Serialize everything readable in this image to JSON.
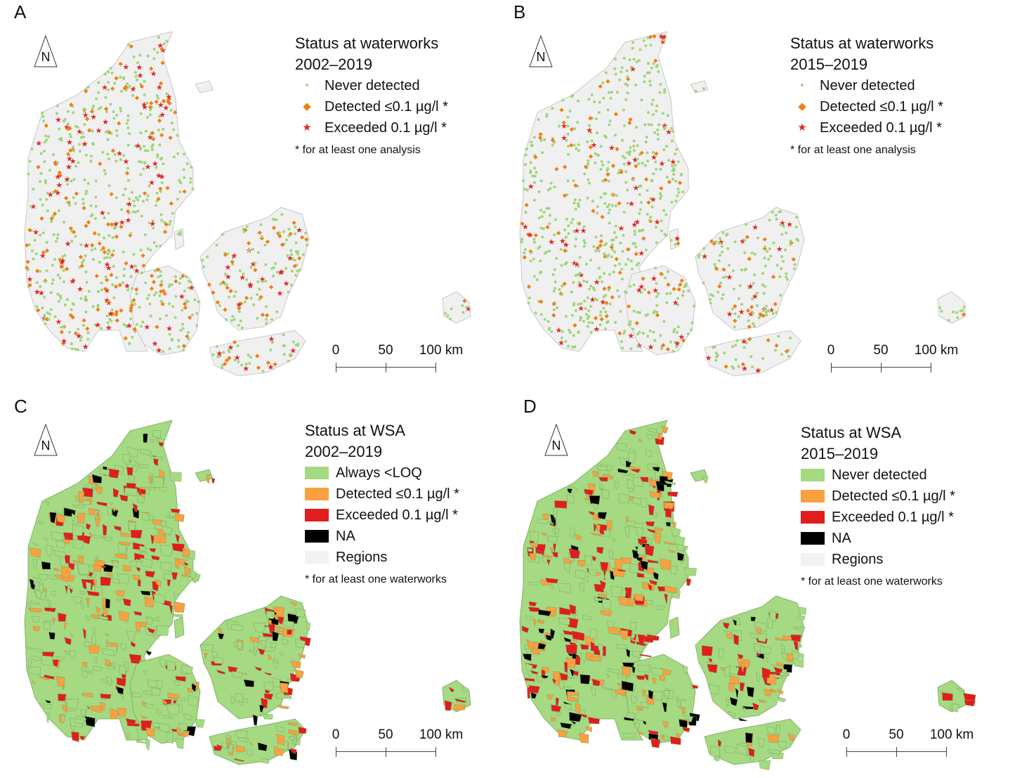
{
  "panels": [
    {
      "letter": "A",
      "legend": {
        "title1": "Status at waterworks",
        "title2": "2002–2019",
        "items": [
          {
            "label": "Never detected",
            "symbol": "•",
            "color": "#9fd67a"
          },
          {
            "label": "Detected ≤0.1 µg/l *",
            "symbol": "◆",
            "color": "#f07f12"
          },
          {
            "label": "Exceeded 0.1 µg/l *",
            "symbol": "★",
            "color": "#e02828"
          }
        ],
        "note": "* for at least one analysis"
      },
      "north": "N",
      "scale": {
        "labels": [
          "0",
          "50",
          "100 km"
        ]
      }
    },
    {
      "letter": "B",
      "legend": {
        "title1": "Status at waterworks",
        "title2": "2015–2019",
        "items": [
          {
            "label": "Never detected",
            "symbol": "•",
            "color": "#9fd67a"
          },
          {
            "label": "Detected ≤0.1 µg/l *",
            "symbol": "◆",
            "color": "#f07f12"
          },
          {
            "label": "Exceeded 0.1 µg/l *",
            "symbol": "★",
            "color": "#e02828"
          }
        ],
        "note": "* for at least one analysis"
      },
      "north": "N",
      "scale": {
        "labels": [
          "0",
          "50",
          "100 km"
        ]
      }
    },
    {
      "letter": "C",
      "legend": {
        "title1": "Status at WSA",
        "title2": "2002–2019",
        "items": [
          {
            "label": "Always <LOQ",
            "color": "#a5d982"
          },
          {
            "label": "Detected ≤0.1 µg/l *",
            "color": "#f9a040"
          },
          {
            "label": "Exceeded 0.1 µg/l *",
            "color": "#e11d1d"
          },
          {
            "label": "NA",
            "color": "#000000"
          },
          {
            "label": "Regions",
            "color": "#f2f2f2"
          }
        ],
        "note": "* for at least one waterworks"
      },
      "north": "N",
      "scale": {
        "labels": [
          "0",
          "50",
          "100 km"
        ]
      }
    },
    {
      "letter": "D",
      "legend": {
        "title1": "Status at WSA",
        "title2": "2015–2019",
        "items": [
          {
            "label": "Never detected",
            "color": "#a5d982"
          },
          {
            "label": "Detected ≤0.1 µg/l *",
            "color": "#f9a040"
          },
          {
            "label": "Exceeded 0.1 µg/l *",
            "color": "#e11d1d"
          },
          {
            "label": "NA",
            "color": "#000000"
          },
          {
            "label": "Regions",
            "color": "#f2f2f2"
          }
        ],
        "note": "* for at least one waterworks"
      },
      "north": "N",
      "scale": {
        "labels": [
          "0",
          "50",
          "100 km"
        ]
      }
    }
  ]
}
